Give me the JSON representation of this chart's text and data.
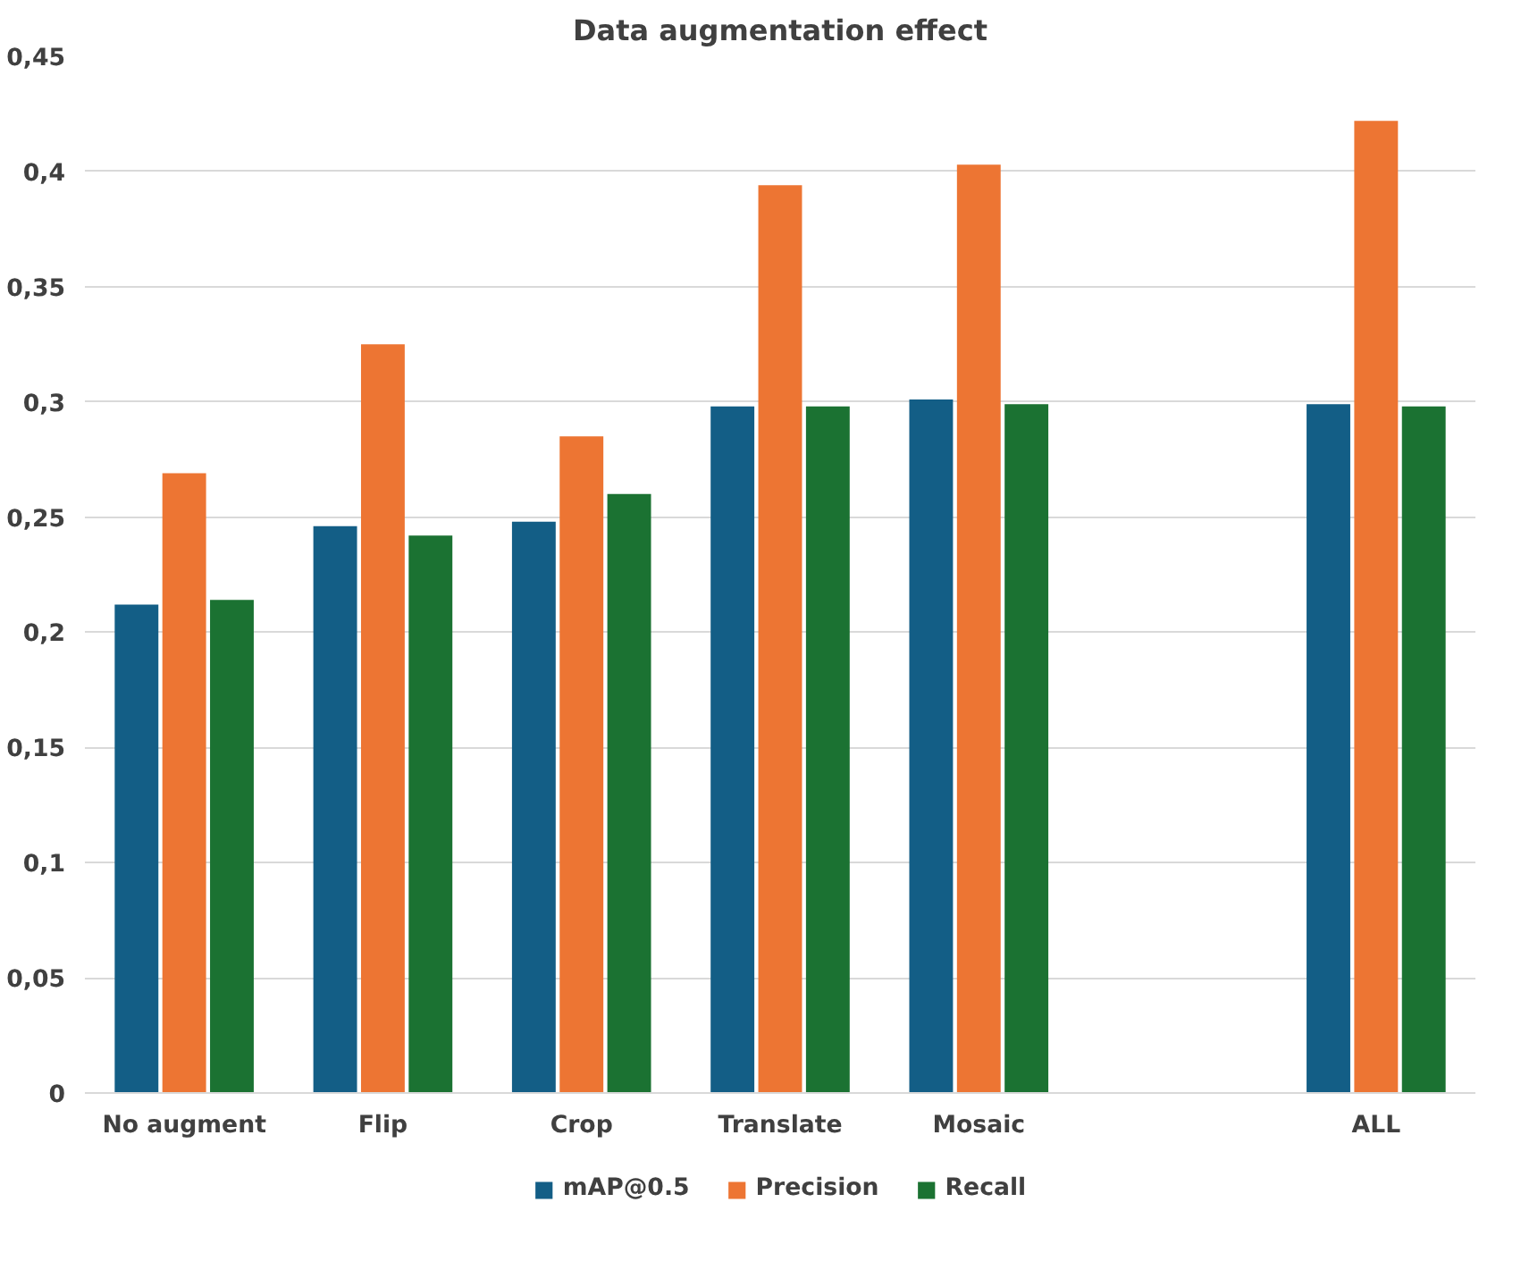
{
  "chart_data": {
    "type": "bar",
    "title": "Data augmentation effect",
    "categories": [
      "No augment",
      "Flip",
      "Crop",
      "Translate",
      "Mosaic",
      null,
      "ALL"
    ],
    "series": [
      {
        "name": "mAP@0.5",
        "color": "#135e86",
        "values": [
          0.212,
          0.246,
          0.248,
          0.298,
          0.301,
          null,
          0.299
        ]
      },
      {
        "name": "Precision",
        "color": "#ed7533",
        "values": [
          0.269,
          0.325,
          0.285,
          0.394,
          0.403,
          null,
          0.422
        ]
      },
      {
        "name": "Recall",
        "color": "#1b7232",
        "values": [
          0.214,
          0.242,
          0.26,
          0.298,
          0.299,
          null,
          0.298
        ]
      }
    ],
    "ylim": [
      0,
      0.45
    ],
    "yticks": [
      0,
      {
        "value": 0.05,
        "label": "0,05"
      },
      {
        "value": 0.1,
        "label": "0,1"
      },
      {
        "value": 0.15,
        "label": "0,15"
      },
      {
        "value": 0.2,
        "label": "0,2"
      },
      {
        "value": 0.25,
        "label": "0,25"
      },
      {
        "value": 0.3,
        "label": "0,3"
      },
      {
        "value": 0.35,
        "label": "0,35"
      },
      {
        "value": 0.4,
        "label": "0,4"
      },
      {
        "value": 0.45,
        "label": "0,45"
      }
    ],
    "grid": "y",
    "legend": "bottom"
  }
}
